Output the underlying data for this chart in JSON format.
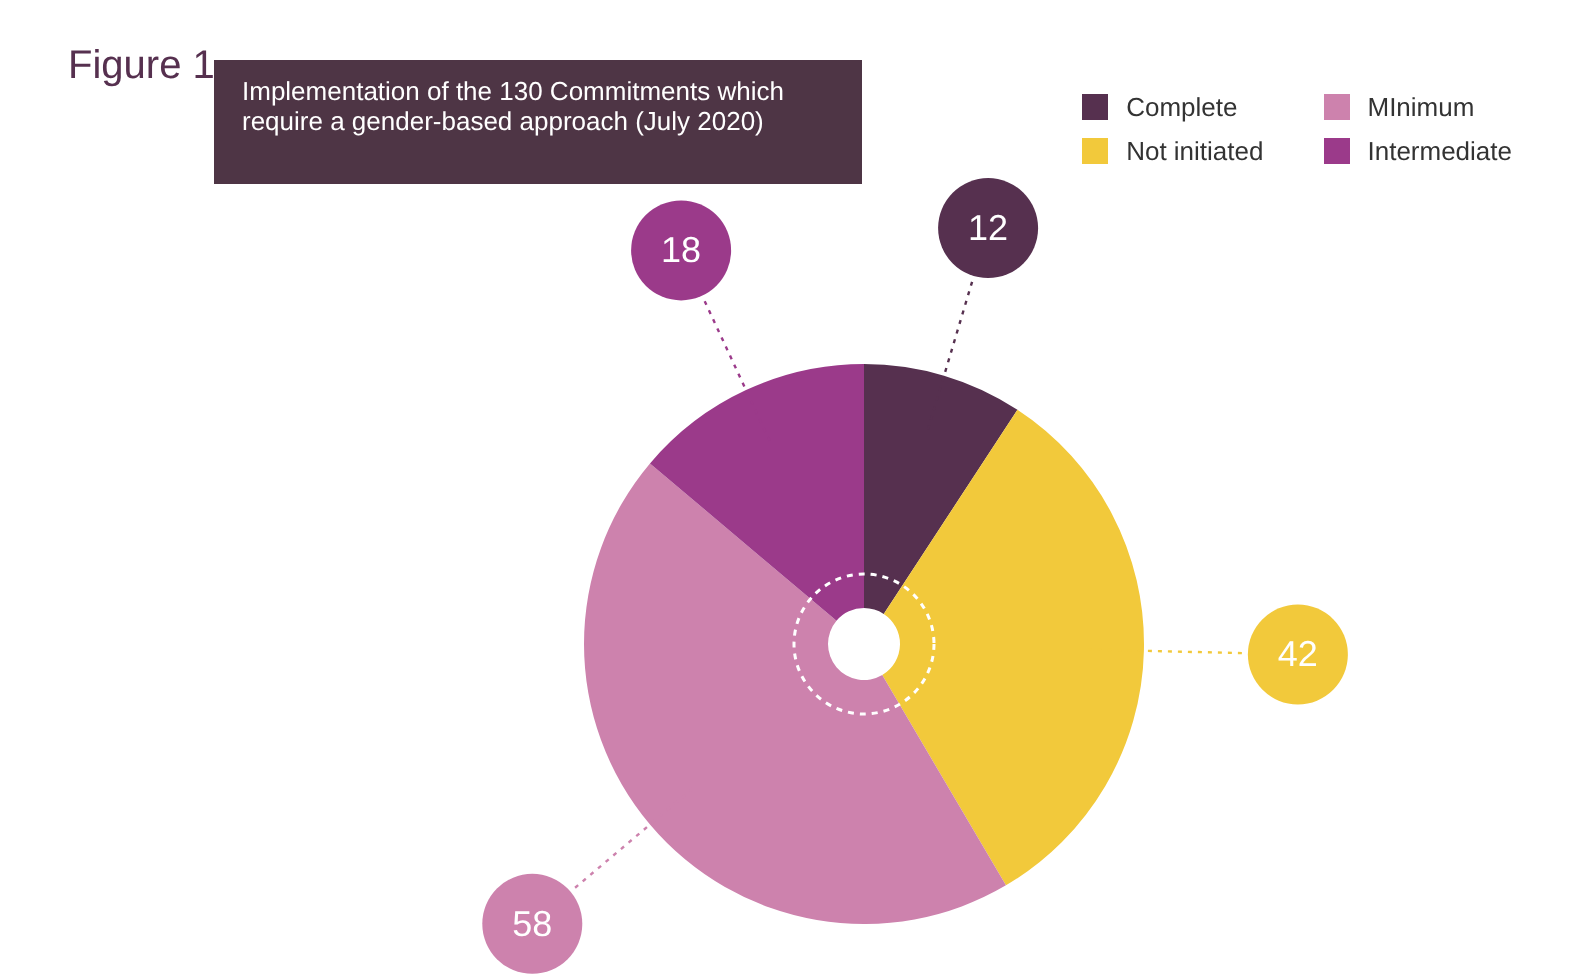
{
  "chart_data": {
    "type": "donut",
    "title": "Implementation of the 130 Commitments which require a gender-based approach (July 2020)",
    "annotations": [
      "Figure 1"
    ],
    "categories": [
      "Complete",
      "Not initiated",
      "MInimum",
      "Intermediate"
    ],
    "values": [
      12,
      42,
      58,
      18
    ],
    "colors": [
      "#56304f",
      "#f2c93b",
      "#cd82ad",
      "#9b3a8a"
    ],
    "data_labels": true,
    "legend": "top right"
  }
}
